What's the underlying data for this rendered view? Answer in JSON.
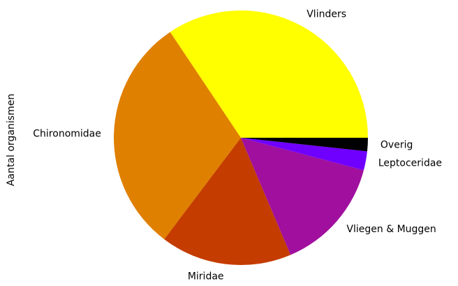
{
  "chart_data": {
    "type": "pie",
    "ylabel": "Aantal organismen",
    "categories": [
      "Vlinders",
      "Chironomidae",
      "Miridae",
      "Vliegen & Muggen",
      "Leptoceridae",
      "Overig"
    ],
    "values": [
      34.4,
      30.3,
      16.7,
      14.5,
      2.4,
      1.7
    ],
    "colors": [
      "#ffff00",
      "#e08000",
      "#c43c00",
      "#a00f9e",
      "#6f00ff",
      "#000000"
    ],
    "startangle": 0,
    "counterclockwise": true
  }
}
